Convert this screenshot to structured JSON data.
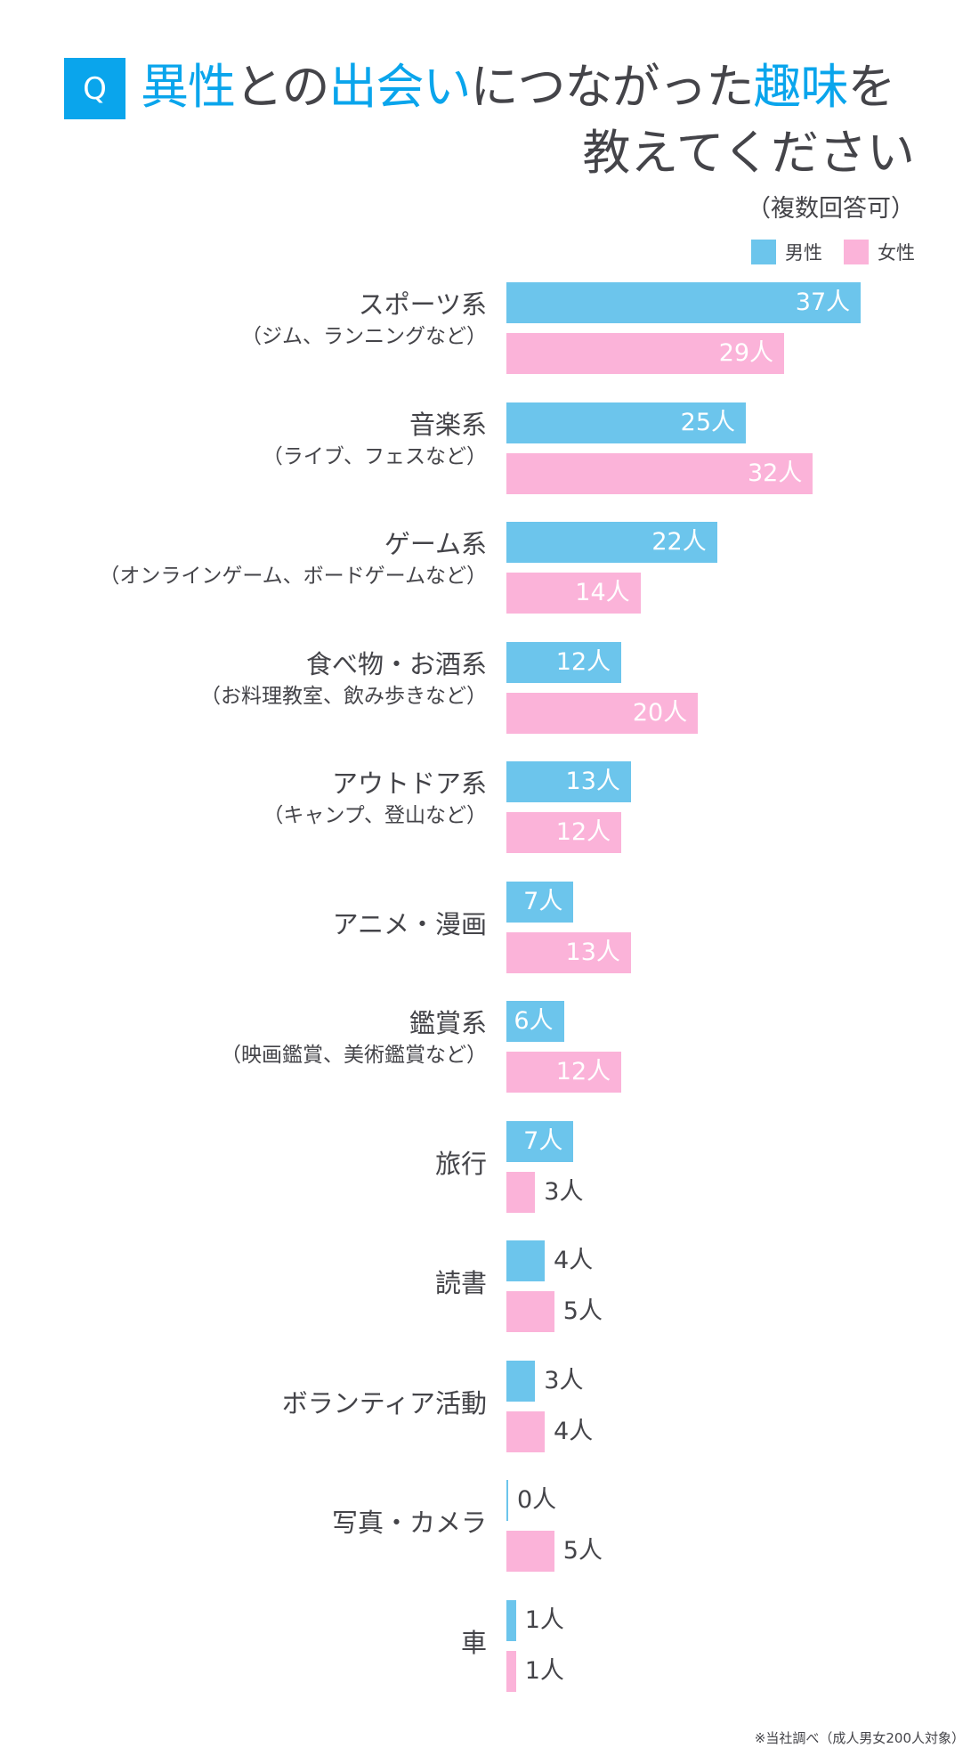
{
  "header": {
    "q_badge": "Q",
    "title_parts": [
      "異性",
      "との",
      "出会い",
      "につながった",
      "趣味",
      "を"
    ],
    "title_line2": "教えてください",
    "subtitle": "（複数回答可）"
  },
  "legend": {
    "male": "男性",
    "female": "女性"
  },
  "colors": {
    "accent": "#0aa5ec",
    "male": "#6cc5ec",
    "female": "#fbb3d9",
    "text": "#444449"
  },
  "footnote": "※当社調べ（成人男女200人対象）",
  "chart_data": {
    "type": "bar",
    "orientation": "horizontal",
    "title": "異性との出会いにつながった趣味を教えてください（複数回答可）",
    "unit": "人",
    "categories": [
      "スポーツ系（ジム、ランニングなど）",
      "音楽系（ライブ、フェスなど）",
      "ゲーム系（オンラインゲーム、ボードゲームなど）",
      "食べ物・お酒系（お料理教室、飲み歩きなど）",
      "アウトドア系（キャンプ、登山など）",
      "アニメ・漫画",
      "鑑賞系（映画鑑賞、美術鑑賞など）",
      "旅行",
      "読書",
      "ボランティア活動",
      "写真・カメラ",
      "車"
    ],
    "series": [
      {
        "name": "男性",
        "color": "#6cc5ec",
        "values": [
          37,
          25,
          22,
          12,
          13,
          7,
          6,
          7,
          4,
          3,
          0,
          1
        ]
      },
      {
        "name": "女性",
        "color": "#fbb3d9",
        "values": [
          29,
          32,
          14,
          20,
          12,
          13,
          12,
          3,
          5,
          4,
          5,
          1
        ]
      }
    ],
    "legend_position": "top-right",
    "grid": false,
    "xlabel": "",
    "ylabel": "",
    "note": "※当社調べ（成人男女200人対象）"
  },
  "rows": [
    {
      "main": "スポーツ系",
      "note": "（ジム、ランニングなど）",
      "m": "37人",
      "f": "29人"
    },
    {
      "main": "音楽系",
      "note": "（ライブ、フェスなど）",
      "m": "25人",
      "f": "32人"
    },
    {
      "main": "ゲーム系",
      "note": "（オンラインゲーム、ボードゲームなど）",
      "m": "22人",
      "f": "14人"
    },
    {
      "main": "食べ物・お酒系",
      "note": "（お料理教室、飲み歩きなど）",
      "m": "12人",
      "f": "20人"
    },
    {
      "main": "アウトドア系",
      "note": "（キャンプ、登山など）",
      "m": "13人",
      "f": "12人"
    },
    {
      "main": "アニメ・漫画",
      "note": "",
      "m": "7人",
      "f": "13人"
    },
    {
      "main": "鑑賞系",
      "note": "（映画鑑賞、美術鑑賞など）",
      "m": "6人",
      "f": "12人"
    },
    {
      "main": "旅行",
      "note": "",
      "m": "7人",
      "f": "3人"
    },
    {
      "main": "読書",
      "note": "",
      "m": "4人",
      "f": "5人"
    },
    {
      "main": "ボランティア活動",
      "note": "",
      "m": "3人",
      "f": "4人"
    },
    {
      "main": "写真・カメラ",
      "note": "",
      "m": "0人",
      "f": "5人"
    },
    {
      "main": "車",
      "note": "",
      "m": "1人",
      "f": "1人"
    }
  ]
}
